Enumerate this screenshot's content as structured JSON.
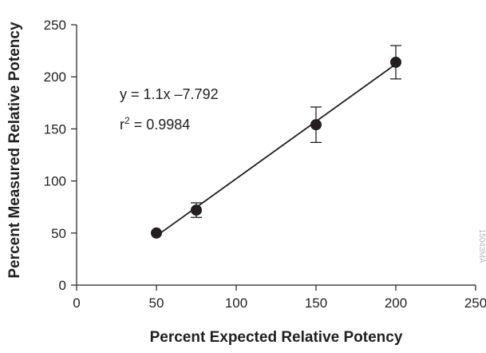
{
  "chart_data": {
    "type": "scatter",
    "title": "",
    "xlabel": "Percent Expected Relative Potency",
    "ylabel": "Percent Measured Relative Potency",
    "xlim": [
      0,
      250
    ],
    "ylim": [
      0,
      250
    ],
    "xticks": [
      0,
      50,
      100,
      150,
      200,
      250
    ],
    "yticks": [
      0,
      50,
      100,
      150,
      200,
      250
    ],
    "grid": false,
    "legend": "none",
    "points": [
      {
        "x": 50,
        "y": 50,
        "err": 0
      },
      {
        "x": 75,
        "y": 72,
        "err": 7
      },
      {
        "x": 150,
        "y": 154,
        "err": 17
      },
      {
        "x": 200,
        "y": 214,
        "err": 16
      }
    ],
    "fit": {
      "slope": 1.1,
      "intercept": -7.792,
      "x_start": 50,
      "x_end": 200
    },
    "annotations": {
      "equation": "y = 1.1x –7.792",
      "r2_prefix": "r",
      "r2_sup": "2",
      "r2_value": " = 0.9984"
    },
    "side_code": "15043MA",
    "colors": {
      "marker": "#231f20",
      "axis": "#231f20",
      "text": "#231f20"
    }
  }
}
